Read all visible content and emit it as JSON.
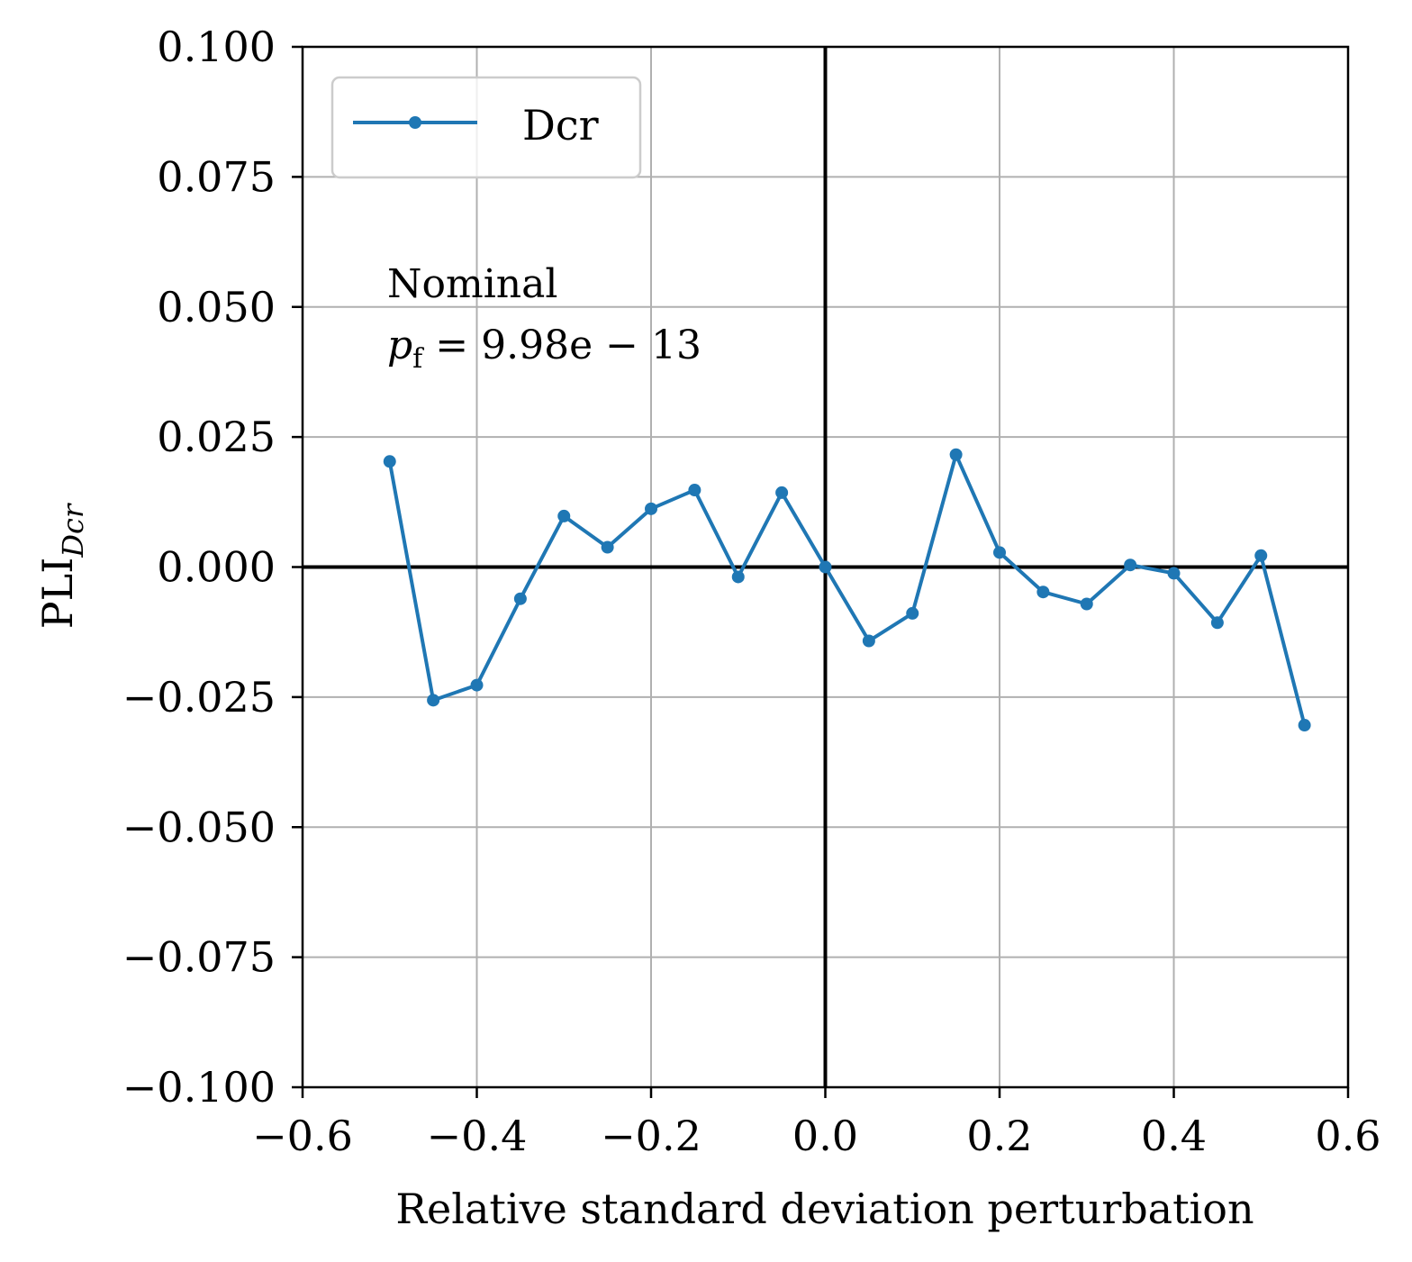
{
  "chart_data": {
    "type": "line",
    "xlabel": "Relative standard deviation perturbation",
    "ylabel": "PLI",
    "ylabel_subscript": "Dcr",
    "xlim": [
      -0.6,
      0.6
    ],
    "ylim": [
      -0.1,
      0.1
    ],
    "xticks": [
      -0.6,
      -0.4,
      -0.2,
      0.0,
      0.2,
      0.4,
      0.6
    ],
    "xtick_labels": [
      "−0.6",
      "−0.4",
      "−0.2",
      "0.0",
      "0.2",
      "0.4",
      "0.6"
    ],
    "yticks": [
      0.1,
      0.075,
      0.05,
      0.025,
      0.0,
      -0.025,
      -0.05,
      -0.075,
      -0.1
    ],
    "ytick_labels": [
      "0.100",
      "0.075",
      "0.050",
      "0.025",
      "0.000",
      "−0.025",
      "−0.050",
      "−0.075",
      "−0.100"
    ],
    "grid": true,
    "legend_position": "top-left",
    "annotation": {
      "line1": "Nominal",
      "line2_var": "p",
      "line2_sub": "f",
      "line2_rest": " = 9.98e − 13"
    },
    "series": [
      {
        "name": "Dcr",
        "color": "#1f77b4",
        "x": [
          -0.5,
          -0.45,
          -0.4,
          -0.35,
          -0.3,
          -0.25,
          -0.2,
          -0.15,
          -0.1,
          -0.05,
          0.0,
          0.05,
          0.1,
          0.15,
          0.2,
          0.25,
          0.3,
          0.35,
          0.4,
          0.45,
          0.5,
          0.55
        ],
        "y": [
          0.0203,
          -0.0256,
          -0.0227,
          -0.0061,
          0.0098,
          0.0038,
          0.0112,
          0.0148,
          -0.0019,
          0.0143,
          0.0,
          -0.0142,
          -0.0089,
          0.0216,
          0.0028,
          -0.0048,
          -0.0071,
          0.0004,
          -0.0012,
          -0.0107,
          0.0022,
          -0.0304
        ]
      }
    ]
  }
}
